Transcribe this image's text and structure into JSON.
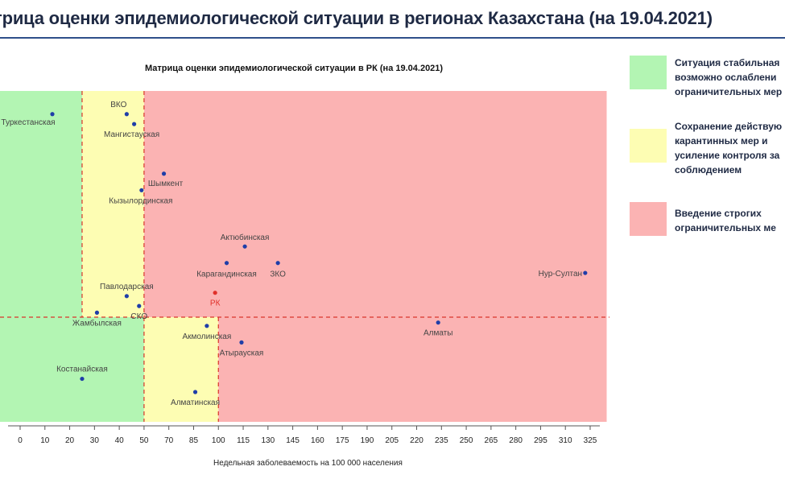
{
  "page_title": "трица оценки эпидемиологической ситуации в регионах Казахстана (на 19.04.2021)",
  "colors": {
    "green": "#b3f5b3",
    "yellow": "#fdfdb3",
    "red": "#fbb3b3",
    "line": "#d9342b",
    "point": "#1f3ea8",
    "rk": "#e0302a"
  },
  "legend": [
    {
      "color": "#b3f5b3",
      "text": "Ситуация стабильная\nвозможно ослаблени\nограничительных мер"
    },
    {
      "color": "#fdfdb3",
      "text": "Сохранение действую\nкарантинных мер и\nусиление контроля за\nсоблюдением"
    },
    {
      "color": "#fbb3b3",
      "text": "Введение строгих\nограничительных ме"
    }
  ],
  "chart_data": {
    "type": "scatter",
    "title": "Матрица оценки эпидемиологической ситуации в РК (на 19.04.2021)",
    "xlabel": "Недельная заболеваемость на 100 000 населения",
    "xlim": [
      0,
      335
    ],
    "x_ticks": [
      0,
      10,
      20,
      30,
      40,
      50,
      70,
      85,
      100,
      115,
      130,
      145,
      160,
      175,
      190,
      205,
      220,
      235,
      250,
      265,
      280,
      295,
      310,
      325
    ],
    "x_tick_labels": [
      "0",
      "10",
      "20",
      "30",
      "40",
      "50",
      "70",
      "85",
      "100",
      "115",
      "130",
      "145",
      "160",
      "175",
      "190",
      "205",
      "220",
      "235",
      "250",
      "265",
      "280",
      "295",
      "310",
      "325"
    ],
    "zones": [
      {
        "color": "green",
        "x": [
          0,
          25
        ],
        "part": "top"
      },
      {
        "color": "yellow",
        "x": [
          25,
          50
        ],
        "part": "top"
      },
      {
        "color": "red",
        "x": [
          50,
          335
        ],
        "part": "top"
      },
      {
        "color": "green",
        "x": [
          0,
          50
        ],
        "part": "bottom"
      },
      {
        "color": "yellow",
        "x": [
          50,
          100
        ],
        "part": "bottom"
      },
      {
        "color": "red",
        "x": [
          100,
          335
        ],
        "part": "bottom"
      }
    ],
    "vlines_top": [
      25,
      50
    ],
    "vlines_bottom": [
      50,
      100
    ],
    "points": [
      {
        "name": "Туркестанская",
        "x": 13,
        "y": 0.93,
        "lx": -30,
        "ly": 13
      },
      {
        "name": "ВКО",
        "x": 43,
        "y": 0.93,
        "lx": -10,
        "ly": -9
      },
      {
        "name": "Мангистауская",
        "x": 46,
        "y": 0.9,
        "lx": -3,
        "ly": 16
      },
      {
        "name": "Шымкент",
        "x": 66,
        "y": 0.75,
        "lx": 2,
        "ly": 15
      },
      {
        "name": "Кызылординская",
        "x": 49,
        "y": 0.7,
        "lx": -1,
        "ly": 16
      },
      {
        "name": "Актюбинская",
        "x": 116,
        "y": 0.53,
        "lx": 0,
        "ly": -8
      },
      {
        "name": "Карагандинская",
        "x": 105,
        "y": 0.48,
        "lx": 0,
        "ly": 17
      },
      {
        "name": "ЗКО",
        "x": 136,
        "y": 0.48,
        "lx": 0,
        "ly": 17
      },
      {
        "name": "Нур-Султан",
        "x": 322,
        "y": 0.45,
        "lx": -31,
        "ly": 4
      },
      {
        "name": "Павлодарская",
        "x": 43,
        "y": 0.38,
        "lx": 0,
        "ly": -9
      },
      {
        "name": "СКО",
        "x": 48,
        "y": 0.35,
        "lx": 0,
        "ly": 16
      },
      {
        "name": "Жамбылская",
        "x": 31,
        "y": 0.33,
        "lx": 0,
        "ly": 16
      },
      {
        "name": "РК",
        "x": 98,
        "y": 0.39,
        "lx": 0,
        "ly": 16,
        "highlight": true
      },
      {
        "name": "Алматы",
        "x": 233,
        "y": 0.3,
        "lx": 0,
        "ly": 16
      },
      {
        "name": "Акмолинская",
        "x": 93,
        "y": 0.29,
        "lx": 0,
        "ly": 16
      },
      {
        "name": "Атырауская",
        "x": 114,
        "y": 0.24,
        "lx": 0,
        "ly": 16
      },
      {
        "name": "Костанайская",
        "x": 25,
        "y": 0.13,
        "lx": 0,
        "ly": -9
      },
      {
        "name": "Алматинская",
        "x": 86,
        "y": 0.09,
        "lx": 0,
        "ly": 16
      }
    ]
  }
}
